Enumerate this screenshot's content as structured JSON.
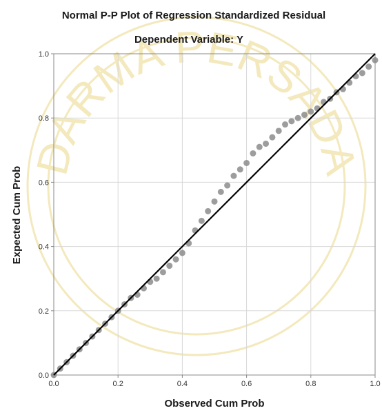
{
  "watermark": {
    "text": "DARMA PERSADA",
    "color": "#f3e9bd"
  },
  "colors": {
    "plot_border": "#888888",
    "grid": "#d8d8d8",
    "reference_line": "#000000",
    "observed_points": "#8c8c8c"
  },
  "chart_data": {
    "type": "scatter",
    "title": "Normal P-P Plot of Regression Standardized Residual",
    "subtitle": "Dependent Variable: Y",
    "xlabel": "Observed Cum Prob",
    "ylabel": "Expected Cum Prob",
    "xlim": [
      0,
      1
    ],
    "ylim": [
      0,
      1
    ],
    "xticks": [
      "0.0",
      "0.2",
      "0.4",
      "0.6",
      "0.8",
      "1.0"
    ],
    "yticks": [
      "0.0",
      "0.2",
      "0.4",
      "0.6",
      "0.8",
      "1.0"
    ],
    "grid": true,
    "reference_line": {
      "x": [
        0,
        1
      ],
      "y": [
        0,
        1
      ]
    },
    "series": [
      {
        "x": [
          0.0,
          0.02,
          0.04,
          0.06,
          0.08,
          0.1,
          0.12,
          0.14,
          0.16,
          0.18,
          0.2,
          0.22,
          0.24,
          0.26,
          0.28,
          0.3,
          0.32,
          0.34,
          0.36,
          0.38,
          0.4,
          0.42,
          0.44,
          0.46,
          0.48,
          0.5,
          0.52,
          0.54,
          0.56,
          0.58,
          0.6,
          0.62,
          0.64,
          0.66,
          0.68,
          0.7,
          0.72,
          0.74,
          0.76,
          0.78,
          0.8,
          0.82,
          0.84,
          0.86,
          0.88,
          0.9,
          0.92,
          0.94,
          0.96,
          0.98,
          1.0
        ],
        "y": [
          0.0,
          0.02,
          0.04,
          0.06,
          0.08,
          0.1,
          0.12,
          0.14,
          0.16,
          0.18,
          0.2,
          0.22,
          0.24,
          0.25,
          0.27,
          0.29,
          0.3,
          0.32,
          0.34,
          0.36,
          0.38,
          0.41,
          0.45,
          0.48,
          0.51,
          0.54,
          0.57,
          0.59,
          0.62,
          0.64,
          0.66,
          0.69,
          0.71,
          0.72,
          0.74,
          0.76,
          0.78,
          0.79,
          0.8,
          0.81,
          0.82,
          0.83,
          0.85,
          0.86,
          0.88,
          0.89,
          0.91,
          0.93,
          0.94,
          0.96,
          0.98
        ]
      }
    ]
  }
}
